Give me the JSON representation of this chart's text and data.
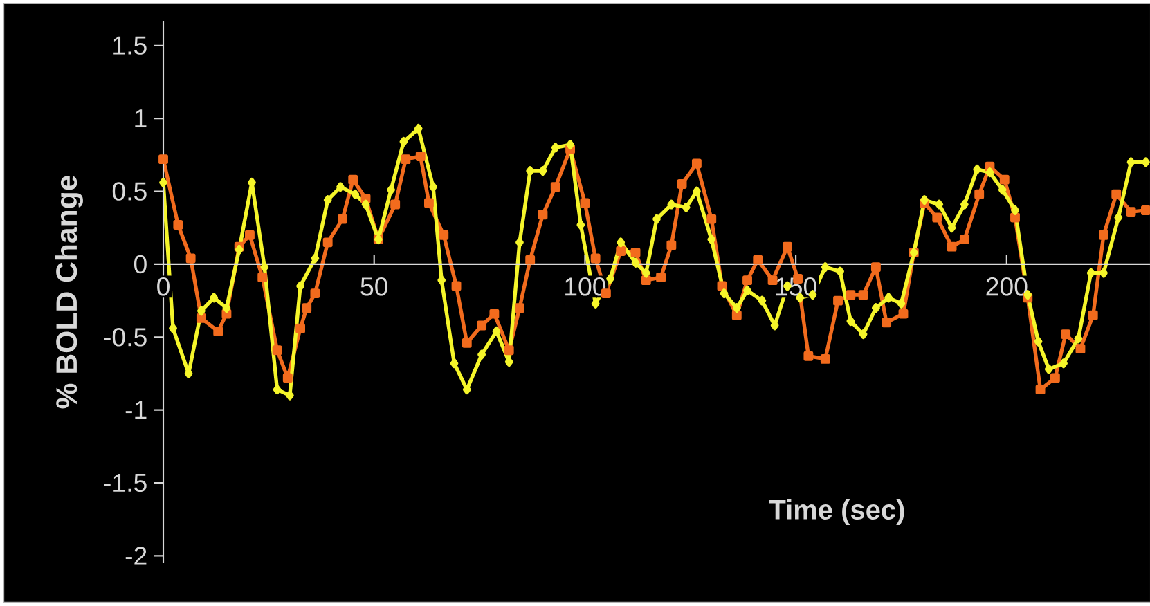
{
  "chart_data": {
    "type": "line",
    "xlabel": "Time (sec)",
    "ylabel": "% BOLD Change",
    "xlim": [
      0,
      234
    ],
    "ylim": [
      -2.05,
      1.67
    ],
    "xticks": [
      0,
      50,
      100,
      150,
      200
    ],
    "yticks": [
      -2,
      -1.5,
      -1,
      -0.5,
      0,
      0.5,
      1,
      1.5
    ],
    "line_style": "solid",
    "series": [
      {
        "color": "#f26b1d",
        "marker": "square",
        "x": [
          0,
          3.5,
          6.5,
          9,
          13,
          15,
          18,
          20.5,
          23.5,
          27,
          29.5,
          32.5,
          34,
          36,
          39,
          42.5,
          45,
          48,
          51,
          55,
          57.5,
          61,
          63,
          66.5,
          69.5,
          72,
          75.5,
          78.5,
          82,
          84.5,
          87,
          90,
          93,
          96.5,
          100,
          102.5,
          105,
          108.5,
          112,
          114.5,
          118,
          120.5,
          123,
          126.5,
          130,
          132.5,
          136,
          138.5,
          141,
          144.5,
          148,
          150.5,
          153,
          157,
          160,
          163,
          166,
          169,
          171.5,
          175.5,
          178,
          180.5,
          183.5,
          187,
          190,
          193.5,
          196,
          199.5,
          202,
          205,
          208,
          211.5,
          214,
          217.5,
          220.5,
          223,
          226,
          229.5,
          233
        ],
        "values": [
          0.72,
          0.27,
          0.04,
          -0.37,
          -0.46,
          -0.34,
          0.12,
          0.2,
          -0.09,
          -0.59,
          -0.78,
          -0.44,
          -0.3,
          -0.2,
          0.15,
          0.31,
          0.58,
          0.45,
          0.17,
          0.41,
          0.72,
          0.74,
          0.42,
          0.2,
          -0.15,
          -0.54,
          -0.42,
          -0.34,
          -0.59,
          -0.3,
          0.03,
          0.34,
          0.53,
          0.79,
          0.42,
          0.04,
          -0.2,
          0.09,
          0.08,
          -0.11,
          -0.09,
          0.13,
          0.55,
          0.69,
          0.31,
          -0.15,
          -0.35,
          -0.11,
          0.03,
          -0.11,
          0.12,
          -0.1,
          -0.63,
          -0.65,
          -0.25,
          -0.21,
          -0.21,
          -0.02,
          -0.4,
          -0.34,
          0.08,
          0.42,
          0.32,
          0.12,
          0.17,
          0.48,
          0.67,
          0.58,
          0.32,
          -0.23,
          -0.86,
          -0.78,
          -0.48,
          -0.58,
          -0.35,
          0.2,
          0.48,
          0.36,
          0.37
        ]
      },
      {
        "color": "#f5f52a",
        "marker": "diamond",
        "x": [
          0,
          2.3,
          6,
          9,
          12,
          15,
          18,
          21,
          24,
          27,
          30,
          32.5,
          36,
          39,
          42,
          45.5,
          48,
          51,
          54,
          57,
          60.5,
          64,
          66,
          69,
          72,
          75.5,
          79,
          82,
          84.5,
          87,
          90,
          93,
          96.5,
          99,
          102.5,
          106,
          108.5,
          112,
          114.5,
          117,
          120.5,
          124,
          126.5,
          130,
          133,
          136,
          138.5,
          142,
          145,
          148,
          151,
          154,
          157,
          160.5,
          163,
          166,
          169,
          172,
          175,
          178,
          180.5,
          184,
          187,
          190,
          193,
          196,
          199,
          202,
          205,
          207.5,
          210,
          213.5,
          217,
          220,
          223,
          226.5,
          229.5,
          233
        ],
        "values": [
          0.56,
          -0.44,
          -0.75,
          -0.32,
          -0.23,
          -0.3,
          0.1,
          0.56,
          -0.02,
          -0.86,
          -0.9,
          -0.15,
          0.04,
          0.44,
          0.53,
          0.48,
          0.41,
          0.17,
          0.51,
          0.84,
          0.93,
          0.53,
          -0.11,
          -0.68,
          -0.86,
          -0.62,
          -0.46,
          -0.67,
          0.15,
          0.64,
          0.64,
          0.8,
          0.82,
          0.27,
          -0.27,
          -0.1,
          0.15,
          0.01,
          -0.06,
          0.31,
          0.41,
          0.39,
          0.5,
          0.17,
          -0.2,
          -0.3,
          -0.18,
          -0.25,
          -0.42,
          -0.15,
          -0.23,
          -0.21,
          -0.02,
          -0.05,
          -0.39,
          -0.48,
          -0.3,
          -0.23,
          -0.27,
          0.08,
          0.44,
          0.41,
          0.25,
          0.41,
          0.65,
          0.63,
          0.51,
          0.37,
          -0.21,
          -0.53,
          -0.72,
          -0.68,
          -0.51,
          -0.06,
          -0.06,
          0.32,
          0.7,
          0.7
        ]
      }
    ]
  }
}
